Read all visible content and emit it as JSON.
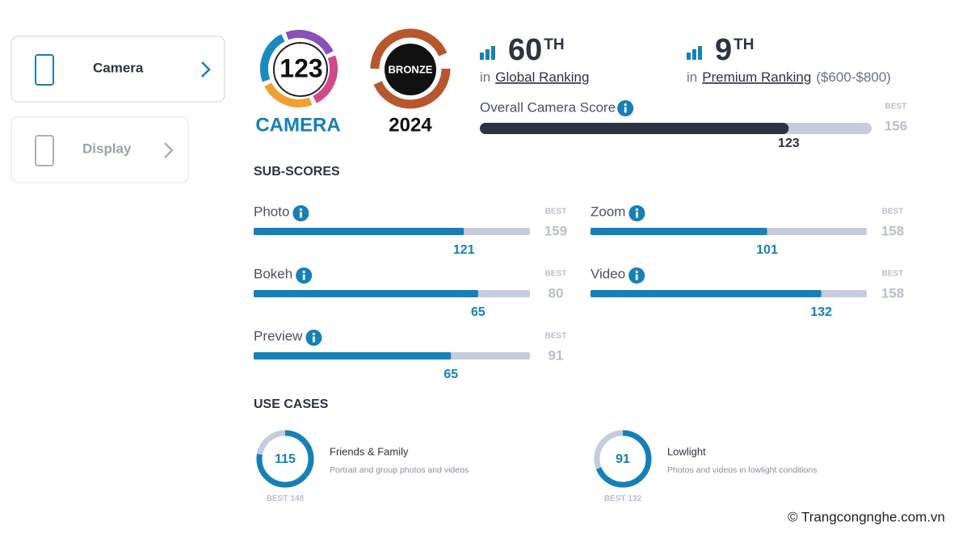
{
  "nav": [
    {
      "label": "Camera"
    },
    {
      "label": "Display"
    }
  ],
  "badge": {
    "score": "123",
    "label": "CAMERA",
    "award": "BRONZE",
    "year": "2024"
  },
  "rankings": [
    {
      "rank": "60",
      "suffix": "TH",
      "prefix": "in",
      "name": "Global Ranking"
    },
    {
      "rank": "9",
      "suffix": "TH",
      "prefix": "in",
      "name": "Premium Ranking",
      "range": "($600-$800)"
    }
  ],
  "overall": {
    "label": "Overall Camera Score",
    "best_label": "BEST",
    "best": 156,
    "score": 123
  },
  "subscores": {
    "title": "SUB-SCORES",
    "best_label": "BEST",
    "items": [
      {
        "name": "Photo",
        "score": 121,
        "best": 159
      },
      {
        "name": "Zoom",
        "score": 101,
        "best": 158
      },
      {
        "name": "Bokeh",
        "score": 65,
        "best": 80
      },
      {
        "name": "Video",
        "score": 132,
        "best": 158
      },
      {
        "name": "Preview",
        "score": 65,
        "best": 91
      }
    ]
  },
  "use_cases": {
    "title": "USE CASES",
    "best_label": "BEST",
    "items": [
      {
        "name": "Friends & Family",
        "description": "Portrait and group photos and videos",
        "score": 115,
        "best": 148
      },
      {
        "name": "Lowlight",
        "description": "Photos and videos in lowlight conditions",
        "score": 91,
        "best": 132
      }
    ]
  },
  "watermark": "© Trangcongnghe.com.vn"
}
